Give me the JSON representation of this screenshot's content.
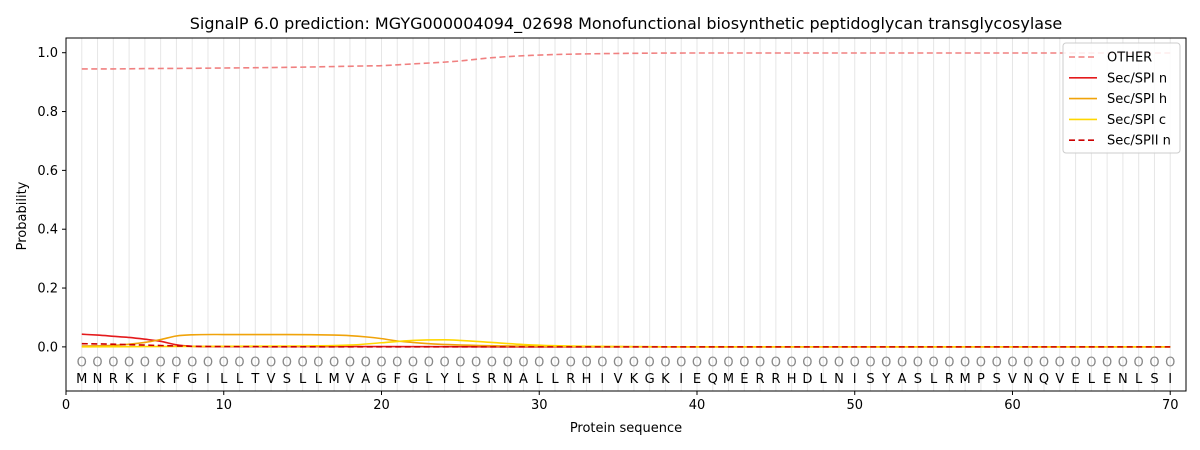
{
  "chart_data": {
    "type": "line",
    "title": "SignalP 6.0 prediction: MGYG000004094_02698 Monofunctional biosynthetic peptidoglycan transglycosylase",
    "xlabel": "Protein sequence",
    "ylabel": "Probability",
    "xlim": [
      0,
      71
    ],
    "ylim": [
      -0.15,
      1.05
    ],
    "x_ticks": [
      0,
      10,
      20,
      30,
      40,
      50,
      60,
      70
    ],
    "y_ticks": [
      0.0,
      0.2,
      0.4,
      0.6,
      0.8,
      1.0
    ],
    "grid": "vertical lines at each residue",
    "legend_position": "top-right",
    "sequence": [
      "M",
      "N",
      "R",
      "K",
      "I",
      "K",
      "F",
      "G",
      "I",
      "L",
      "L",
      "T",
      "V",
      "S",
      "L",
      "L",
      "M",
      "V",
      "A",
      "G",
      "F",
      "G",
      "L",
      "Y",
      "L",
      "S",
      "R",
      "N",
      "A",
      "L",
      "L",
      "R",
      "H",
      "I",
      "V",
      "K",
      "G",
      "K",
      "I",
      "E",
      "Q",
      "M",
      "E",
      "R",
      "R",
      "H",
      "D",
      "L",
      "N",
      "I",
      "S",
      "Y",
      "A",
      "S",
      "L",
      "R",
      "M",
      "P",
      "S",
      "V",
      "N",
      "Q",
      "V",
      "E",
      "L",
      "E",
      "N",
      "L",
      "S",
      "I"
    ],
    "region_marker": "O",
    "series": [
      {
        "name": "OTHER",
        "color": "#f08080",
        "dash": "dashed",
        "x": [
          1,
          3,
          5,
          8,
          10,
          12,
          15,
          17,
          19,
          20,
          22,
          24,
          25,
          27,
          30,
          33,
          36,
          40,
          45,
          50,
          55,
          60,
          65,
          70
        ],
        "values": [
          0.945,
          0.945,
          0.946,
          0.947,
          0.948,
          0.949,
          0.951,
          0.953,
          0.955,
          0.956,
          0.962,
          0.968,
          0.972,
          0.983,
          0.992,
          0.996,
          0.998,
          0.999,
          0.999,
          0.999,
          0.999,
          0.999,
          0.999,
          0.999
        ]
      },
      {
        "name": "Sec/SPI n",
        "color": "#e41a1c",
        "dash": "solid",
        "x": [
          1,
          2,
          3,
          4,
          5,
          6,
          7,
          8,
          10,
          20,
          30,
          40,
          50,
          60,
          70
        ],
        "values": [
          0.043,
          0.04,
          0.036,
          0.032,
          0.026,
          0.019,
          0.007,
          0.002,
          0.001,
          0.001,
          0.0,
          0.0,
          0.0,
          0.0,
          0.0
        ]
      },
      {
        "name": "Sec/SPI h",
        "color": "#f0a30a",
        "dash": "solid",
        "x": [
          1,
          3,
          5,
          6,
          7,
          8,
          10,
          14,
          17,
          18,
          19,
          20,
          21,
          23,
          26,
          30,
          35,
          40,
          50,
          60,
          70
        ],
        "values": [
          0.003,
          0.005,
          0.015,
          0.025,
          0.037,
          0.041,
          0.042,
          0.042,
          0.04,
          0.038,
          0.034,
          0.028,
          0.02,
          0.011,
          0.005,
          0.002,
          0.001,
          0.0,
          0.0,
          0.0,
          0.0
        ]
      },
      {
        "name": "Sec/SPI c",
        "color": "#ffd700",
        "dash": "solid",
        "x": [
          1,
          5,
          10,
          15,
          18,
          20,
          22,
          24,
          25,
          27,
          29,
          31,
          35,
          40,
          50,
          60,
          70
        ],
        "values": [
          0.0,
          0.001,
          0.002,
          0.003,
          0.006,
          0.014,
          0.022,
          0.024,
          0.022,
          0.015,
          0.008,
          0.004,
          0.001,
          0.0,
          0.0,
          0.0,
          0.0
        ]
      },
      {
        "name": "Sec/SPII n",
        "color": "#cc0000",
        "dash": "dashed",
        "x": [
          1,
          3,
          5,
          8,
          10,
          20,
          30,
          40,
          50,
          60,
          70
        ],
        "values": [
          0.011,
          0.009,
          0.006,
          0.002,
          0.001,
          0.0,
          0.0,
          0.0,
          0.0,
          0.0,
          0.0
        ]
      }
    ]
  }
}
